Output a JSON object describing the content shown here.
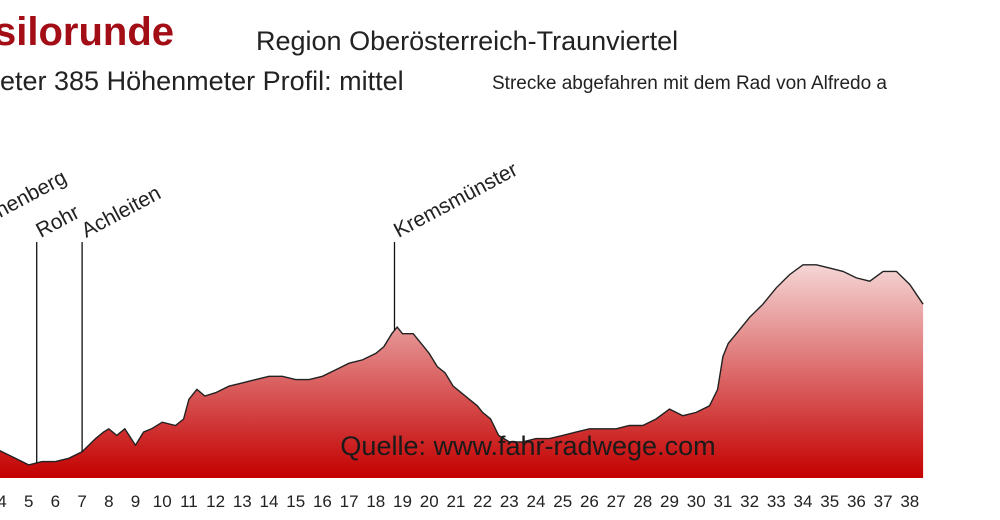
{
  "header": {
    "title": "silorunde",
    "region": "Region Oberösterreich-Traunviertel",
    "stats": "eter  385 Höhenmeter  Profil: mittel",
    "note": "Strecke abgefahren mit dem Rad von Alfredo a"
  },
  "colors": {
    "fill_top": "#f5d6d6",
    "fill_bottom": "#c40000",
    "outline": "#222222",
    "title": "#a30d16"
  },
  "chart_data": {
    "type": "area",
    "title": "",
    "xlabel": "",
    "ylabel": "",
    "x_ticks": [
      "4",
      "5",
      "6",
      "7",
      "8",
      "9",
      "10",
      "11",
      "12",
      "13",
      "14",
      "15",
      "16",
      "17",
      "18",
      "19",
      "20",
      "21",
      "22",
      "23",
      "24",
      "25",
      "26",
      "27",
      "28",
      "29",
      "30",
      "31",
      "32",
      "33",
      "34",
      "35",
      "36",
      "37",
      "38"
    ],
    "series": [
      {
        "x": [
          3.5,
          4.0,
          4.5,
          5.0,
          5.5,
          6.0,
          6.5,
          7.0,
          7.5,
          7.8,
          8.0,
          8.3,
          8.6,
          9.0,
          9.3,
          9.6,
          10.0,
          10.5,
          10.8,
          11.0,
          11.3,
          11.6,
          12.0,
          12.5,
          13.0,
          13.5,
          14.0,
          14.5,
          15.0,
          15.5,
          16.0,
          16.5,
          17.0,
          17.5,
          18.0,
          18.3,
          18.6,
          18.8,
          19.0,
          19.4,
          19.8,
          20.0,
          20.3,
          20.6,
          20.9,
          21.2,
          21.5,
          21.8,
          22.0,
          22.3,
          22.6,
          23.0,
          23.5,
          24.0,
          24.5,
          25.0,
          25.5,
          26.0,
          26.5,
          27.0,
          27.5,
          28.0,
          28.5,
          29.0,
          29.5,
          30.0,
          30.5,
          30.8,
          31.0,
          31.2,
          31.5,
          32.0,
          32.5,
          33.0,
          33.5,
          34.0,
          34.5,
          35.0,
          35.5,
          36.0,
          36.5,
          37.0,
          37.5,
          38.0,
          38.5
        ],
        "y": [
          0.1,
          0.08,
          0.06,
          0.04,
          0.05,
          0.05,
          0.06,
          0.08,
          0.12,
          0.14,
          0.15,
          0.13,
          0.15,
          0.1,
          0.14,
          0.15,
          0.17,
          0.16,
          0.18,
          0.24,
          0.27,
          0.25,
          0.26,
          0.28,
          0.29,
          0.3,
          0.31,
          0.31,
          0.3,
          0.3,
          0.31,
          0.33,
          0.35,
          0.36,
          0.38,
          0.4,
          0.44,
          0.46,
          0.44,
          0.44,
          0.4,
          0.38,
          0.34,
          0.32,
          0.28,
          0.26,
          0.24,
          0.22,
          0.2,
          0.18,
          0.13,
          0.11,
          0.11,
          0.12,
          0.12,
          0.13,
          0.14,
          0.15,
          0.15,
          0.15,
          0.16,
          0.16,
          0.18,
          0.21,
          0.19,
          0.2,
          0.22,
          0.27,
          0.37,
          0.41,
          0.44,
          0.49,
          0.53,
          0.58,
          0.62,
          0.65,
          0.65,
          0.64,
          0.63,
          0.61,
          0.6,
          0.63,
          0.63,
          0.59,
          0.53
        ]
      }
    ],
    "annotations": [
      {
        "label": "henberg",
        "x": 3.55
      },
      {
        "label": "Rohr",
        "x": 5.3
      },
      {
        "label": "Achleiten",
        "x": 7.0
      },
      {
        "label": "Kremsmünster",
        "x": 18.7
      }
    ],
    "watermark": "Quelle: www.fahr-radwege.com"
  }
}
